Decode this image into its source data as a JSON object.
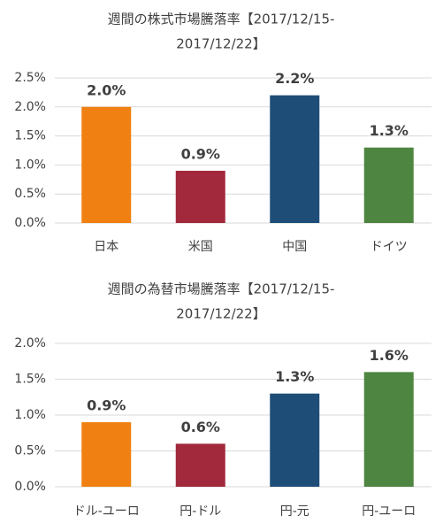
{
  "chart_data": [
    {
      "type": "bar",
      "title": [
        "週間の株式市場騰落率【2017/12/15-",
        "2017/12/22】"
      ],
      "categories": [
        "日本",
        "米国",
        "中国",
        "ドイツ"
      ],
      "values": [
        2.0,
        0.9,
        2.2,
        1.3
      ],
      "value_labels": [
        "2.0%",
        "0.9%",
        "2.2%",
        "1.3%"
      ],
      "colors": [
        "#ef8011",
        "#a2283b",
        "#1e4e78",
        "#4e8540"
      ],
      "ylim": [
        0,
        2.5
      ],
      "yticks": [
        {
          "value": 0,
          "label": "0.0%"
        },
        {
          "value": 0.5,
          "label": "0.5%"
        },
        {
          "value": 1.0,
          "label": "1.0%"
        },
        {
          "value": 1.5,
          "label": "1.5%"
        },
        {
          "value": 2.0,
          "label": "2.0%"
        },
        {
          "value": 2.5,
          "label": "2.5%"
        }
      ],
      "grid": true
    },
    {
      "type": "bar",
      "title": [
        "週間の為替市場騰落率【2017/12/15-",
        "2017/12/22】"
      ],
      "categories": [
        "ドル-ユーロ",
        "円-ドル",
        "円-元",
        "円-ユーロ"
      ],
      "values": [
        0.9,
        0.6,
        1.3,
        1.6
      ],
      "value_labels": [
        "0.9%",
        "0.6%",
        "1.3%",
        "1.6%"
      ],
      "colors": [
        "#ef8011",
        "#a2283b",
        "#1e4e78",
        "#4e8540"
      ],
      "ylim": [
        0,
        2.0
      ],
      "yticks": [
        {
          "value": 0,
          "label": "0.0%"
        },
        {
          "value": 0.5,
          "label": "0.5%"
        },
        {
          "value": 1.0,
          "label": "1.0%"
        },
        {
          "value": 1.5,
          "label": "1.5%"
        },
        {
          "value": 2.0,
          "label": "2.0%"
        }
      ],
      "grid": true
    }
  ]
}
